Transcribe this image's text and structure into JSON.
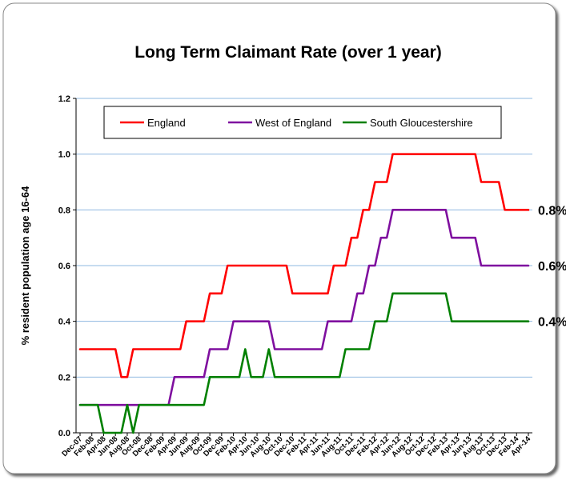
{
  "chart_data": {
    "type": "line",
    "title": "Long Term Claimant Rate (over 1 year)",
    "y_label": "% resident population age 16-64",
    "categories": [
      "Dec-07",
      null,
      "Feb-08",
      null,
      "Apr-08",
      null,
      "Jun-08",
      null,
      "Aug-08",
      null,
      "Oct-08",
      null,
      "Dec-08",
      null,
      "Feb-09",
      null,
      "Apr-09",
      null,
      "Jun-09",
      null,
      "Aug-09",
      null,
      "Oct-09",
      null,
      "Dec-09",
      null,
      "Feb-10",
      null,
      "Apr-10",
      null,
      "Jun-10",
      null,
      "Aug-10",
      null,
      "Oct-10",
      null,
      "Dec-10",
      null,
      "Feb-11",
      null,
      "Apr-11",
      null,
      "Jun-11",
      null,
      "Aug-11",
      null,
      "Oct-11",
      null,
      "Dec-11",
      null,
      "Feb-12",
      null,
      "Apr-12",
      null,
      "Jun-12",
      null,
      "Aug-12",
      null,
      "Oct-12",
      null,
      "Dec-12",
      null,
      "Feb-13",
      null,
      "Apr-13",
      null,
      "Jun-13",
      null,
      "Aug-13",
      null,
      "Oct-13",
      null,
      "Dec-13",
      null,
      "Feb-14",
      null,
      "Apr-14"
    ],
    "series": [
      {
        "name": "England",
        "color": "#ff0000",
        "values": [
          0.3,
          0.3,
          0.3,
          0.3,
          0.3,
          0.3,
          0.3,
          0.2,
          0.2,
          0.3,
          0.3,
          0.3,
          0.3,
          0.3,
          0.3,
          0.3,
          0.3,
          0.3,
          0.4,
          0.4,
          0.4,
          0.4,
          0.5,
          0.5,
          0.5,
          0.6,
          0.6,
          0.6,
          0.6,
          0.6,
          0.6,
          0.6,
          0.6,
          0.6,
          0.6,
          0.6,
          0.5,
          0.5,
          0.5,
          0.5,
          0.5,
          0.5,
          0.5,
          0.6,
          0.6,
          0.6,
          0.7,
          0.7,
          0.8,
          0.8,
          0.9,
          0.9,
          0.9,
          1,
          1,
          1,
          1,
          1,
          1,
          1,
          1,
          1,
          1,
          1,
          1,
          1,
          1,
          1,
          0.9,
          0.9,
          0.9,
          0.9,
          0.8,
          0.8,
          0.8,
          0.8,
          0.8
        ]
      },
      {
        "name": "West of England",
        "color": "#7f0f9f",
        "values": [
          0.1,
          0.1,
          0.1,
          0.1,
          0.1,
          0.1,
          0.1,
          0.1,
          0.1,
          0.1,
          0.1,
          0.1,
          0.1,
          0.1,
          0.1,
          0.1,
          0.2,
          0.2,
          0.2,
          0.2,
          0.2,
          0.2,
          0.3,
          0.3,
          0.3,
          0.3,
          0.4,
          0.4,
          0.4,
          0.4,
          0.4,
          0.4,
          0.4,
          0.3,
          0.3,
          0.3,
          0.3,
          0.3,
          0.3,
          0.3,
          0.3,
          0.3,
          0.4,
          0.4,
          0.4,
          0.4,
          0.4,
          0.5,
          0.5,
          0.6,
          0.6,
          0.7,
          0.7,
          0.8,
          0.8,
          0.8,
          0.8,
          0.8,
          0.8,
          0.8,
          0.8,
          0.8,
          0.8,
          0.7,
          0.7,
          0.7,
          0.7,
          0.7,
          0.6,
          0.6,
          0.6,
          0.6,
          0.6,
          0.6,
          0.6,
          0.6,
          0.6
        ]
      },
      {
        "name": "South Gloucestershire",
        "color": "#008000",
        "values": [
          0.1,
          0.1,
          0.1,
          0.1,
          0,
          0,
          0,
          0,
          0.1,
          0,
          0.1,
          0.1,
          0.1,
          0.1,
          0.1,
          0.1,
          0.1,
          0.1,
          0.1,
          0.1,
          0.1,
          0.1,
          0.2,
          0.2,
          0.2,
          0.2,
          0.2,
          0.2,
          0.3,
          0.2,
          0.2,
          0.2,
          0.3,
          0.2,
          0.2,
          0.2,
          0.2,
          0.2,
          0.2,
          0.2,
          0.2,
          0.2,
          0.2,
          0.2,
          0.2,
          0.3,
          0.3,
          0.3,
          0.3,
          0.3,
          0.4,
          0.4,
          0.4,
          0.5,
          0.5,
          0.5,
          0.5,
          0.5,
          0.5,
          0.5,
          0.5,
          0.5,
          0.5,
          0.4,
          0.4,
          0.4,
          0.4,
          0.4,
          0.4,
          0.4,
          0.4,
          0.4,
          0.4,
          0.4,
          0.4,
          0.4,
          0.4
        ]
      }
    ],
    "annotations": [
      "0.8%",
      "0.6%",
      "0.4%"
    ],
    "ylim": [
      0,
      1.2
    ],
    "yticks": [
      {
        "value": 0,
        "label": "0.0"
      },
      {
        "value": 0.2,
        "label": "0.2"
      },
      {
        "value": 0.4,
        "label": "0.4"
      },
      {
        "value": 0.6,
        "label": "0.6"
      },
      {
        "value": 0.8,
        "label": "0.8"
      },
      {
        "value": 1,
        "label": "1.0"
      },
      {
        "value": 1.2,
        "label": "1.2"
      }
    ],
    "grid": true,
    "legend": "top"
  }
}
